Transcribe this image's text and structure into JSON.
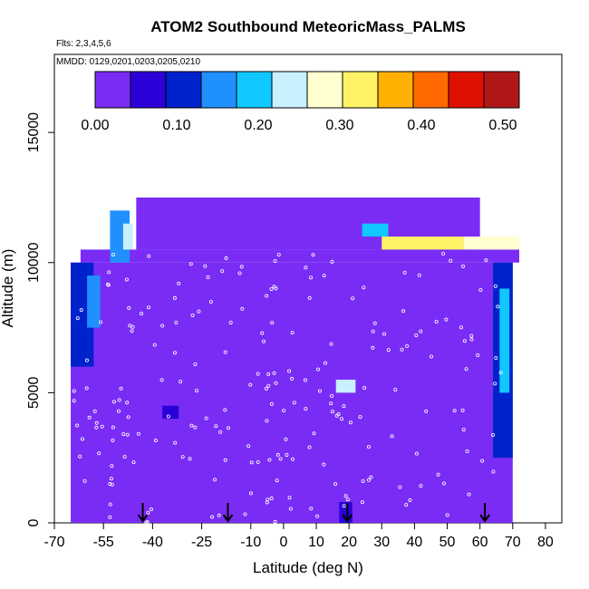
{
  "chart_data": {
    "type": "heatmap",
    "title": "ATOM2 Southbound MeteoricMass_PALMS",
    "flights_note": "Flts: 2,3,4,5,6",
    "dates_note": "MMDD: 0129,0201,0203,0205,0210",
    "xlabel": "Latitude (deg N)",
    "ylabel": "Altitude (m)",
    "xlim": [
      -70,
      85
    ],
    "ylim": [
      0,
      18000
    ],
    "x_ticks": [
      -70,
      -55,
      -40,
      -25,
      -10,
      0,
      10,
      20,
      30,
      40,
      50,
      60,
      70,
      80
    ],
    "y_ticks": [
      0,
      5000,
      10000,
      15000
    ],
    "colorbar": {
      "range": [
        0,
        0.52
      ],
      "tick_values": [
        0.0,
        0.1,
        0.2,
        0.3,
        0.4,
        0.5
      ],
      "tick_labels": [
        "0.00",
        "0.10",
        "0.20",
        "0.30",
        "0.40",
        "0.50"
      ],
      "colors": [
        "#7a2cf5",
        "#2b00d8",
        "#0022cc",
        "#2090ff",
        "#10c8ff",
        "#c8f0ff",
        "#ffffd0",
        "#fff266",
        "#ffb000",
        "#ff6a00",
        "#e01000",
        "#b01818"
      ]
    },
    "background_value": 0.02,
    "hotspots": [
      {
        "lat": -60,
        "alt_range": [
          7000,
          10000
        ],
        "value": 0.12
      },
      {
        "lat": -50,
        "alt_range": [
          10000,
          12000
        ],
        "value": 0.15
      },
      {
        "lat": 22,
        "alt_range": [
          5000,
          5500
        ],
        "value": 0.22
      },
      {
        "lat": 30,
        "alt_range": [
          11000,
          11500
        ],
        "value": 0.2
      },
      {
        "lat": 45,
        "alt_range": [
          10500,
          11000
        ],
        "value": 0.38
      },
      {
        "lat": 68,
        "alt_range": [
          3000,
          10000
        ],
        "value": 0.1
      }
    ],
    "arrow_latitudes": [
      -43,
      -17,
      19.5,
      61.5
    ]
  }
}
